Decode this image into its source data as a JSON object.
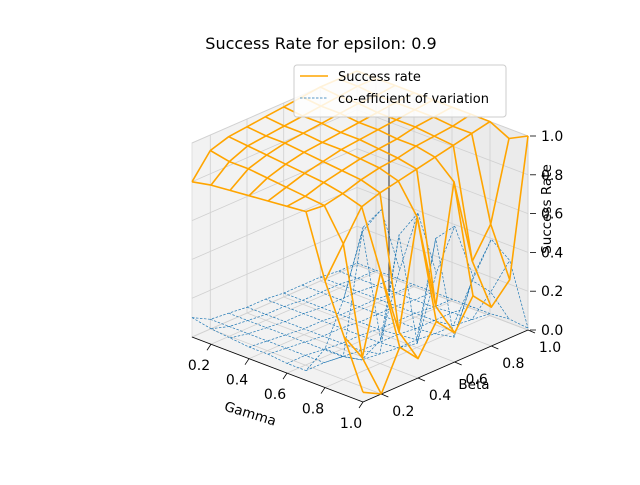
{
  "chart_data": {
    "type": "surface3d",
    "title": "Success Rate for epsilon: 0.9",
    "xlabel": "Gamma",
    "ylabel": "Beta",
    "zlabel": "Success Rate",
    "x_ticks": [
      "0.2",
      "0.4",
      "0.6",
      "0.8",
      "1.0"
    ],
    "y_ticks": [
      "0.2",
      "0.4",
      "0.6",
      "0.8",
      "1.0"
    ],
    "z_ticks": [
      "0.0",
      "0.2",
      "0.4",
      "0.6",
      "0.8",
      "1.0"
    ],
    "xlim": [
      0.1,
      1.0
    ],
    "ylim": [
      0.1,
      1.0
    ],
    "zlim": [
      0.0,
      1.0
    ],
    "gamma": [
      0.1,
      0.2,
      0.3,
      0.4,
      0.5,
      0.6,
      0.7,
      0.8,
      0.9,
      1.0
    ],
    "beta": [
      0.1,
      0.2,
      0.3,
      0.4,
      0.5,
      0.6,
      0.7,
      0.8,
      0.9,
      1.0
    ],
    "series": [
      {
        "name": "Success rate",
        "color": "#ffa500",
        "style": "solid",
        "z": [
          [
            0.8,
            0.92,
            0.95,
            0.96,
            0.97,
            0.98,
            0.99,
            1.0,
            1.0,
            1.0
          ],
          [
            0.82,
            0.9,
            0.94,
            0.95,
            0.96,
            0.97,
            0.98,
            0.99,
            1.0,
            1.0
          ],
          [
            0.83,
            0.9,
            0.93,
            0.95,
            0.96,
            0.97,
            0.98,
            0.99,
            0.99,
            1.0
          ],
          [
            0.84,
            0.89,
            0.92,
            0.94,
            0.95,
            0.96,
            0.97,
            0.98,
            0.99,
            1.0
          ],
          [
            0.85,
            0.88,
            0.91,
            0.93,
            0.95,
            0.96,
            0.97,
            0.98,
            0.99,
            1.0
          ],
          [
            0.86,
            0.87,
            0.9,
            0.92,
            0.94,
            0.95,
            0.96,
            0.98,
            0.99,
            1.0
          ],
          [
            0.87,
            0.86,
            0.88,
            0.91,
            0.93,
            0.94,
            0.96,
            0.97,
            0.98,
            1.0
          ],
          [
            0.55,
            0.7,
            0.85,
            0.88,
            0.9,
            0.92,
            0.94,
            0.96,
            0.98,
            1.0
          ],
          [
            0.3,
            0.15,
            0.55,
            0.2,
            0.75,
            0.25,
            0.85,
            0.4,
            0.55,
            0.95
          ],
          [
            0.05,
            0.0,
            0.2,
            0.1,
            0.25,
            0.15,
            0.3,
            0.2,
            0.3,
            1.0
          ]
        ]
      },
      {
        "name": "co-efficient of variation",
        "color": "#1f77b4",
        "style": "dashed",
        "z": [
          [
            0.1,
            0.05,
            0.04,
            0.03,
            0.03,
            0.02,
            0.02,
            0.02,
            0.01,
            0.01
          ],
          [
            0.08,
            0.05,
            0.04,
            0.03,
            0.03,
            0.02,
            0.02,
            0.02,
            0.01,
            0.01
          ],
          [
            0.07,
            0.05,
            0.04,
            0.03,
            0.03,
            0.02,
            0.02,
            0.02,
            0.01,
            0.01
          ],
          [
            0.06,
            0.05,
            0.04,
            0.03,
            0.03,
            0.02,
            0.02,
            0.02,
            0.01,
            0.01
          ],
          [
            0.06,
            0.05,
            0.04,
            0.03,
            0.03,
            0.02,
            0.02,
            0.02,
            0.01,
            0.01
          ],
          [
            0.05,
            0.05,
            0.04,
            0.03,
            0.03,
            0.02,
            0.02,
            0.02,
            0.01,
            0.01
          ],
          [
            0.05,
            0.05,
            0.04,
            0.03,
            0.03,
            0.03,
            0.02,
            0.02,
            0.02,
            0.01
          ],
          [
            0.2,
            0.12,
            0.06,
            0.05,
            0.04,
            0.04,
            0.03,
            0.03,
            0.02,
            0.01
          ],
          [
            0.5,
            0.8,
            0.2,
            0.7,
            0.1,
            0.6,
            0.05,
            0.3,
            0.2,
            0.02
          ],
          [
            0.9,
            0.95,
            0.6,
            0.85,
            0.5,
            0.7,
            0.4,
            0.55,
            0.4,
            0.01
          ]
        ]
      }
    ],
    "legend_position": "upper-right",
    "grid": true
  }
}
